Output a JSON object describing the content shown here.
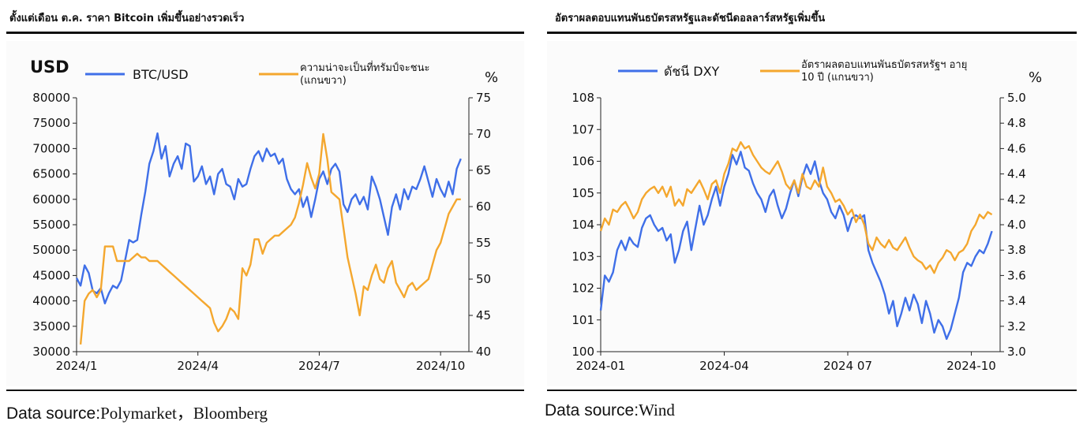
{
  "left": {
    "title": "ตั้งแต่เดือน ต.ค. ราคา Bitcoin เพิ่มขึ้นอย่างรวดเร็ว",
    "source_label": "Data source:",
    "source_value": "Polymarket，Bloomberg"
  },
  "right": {
    "title": "อัตราผลตอบแทนพันธบัตรสหรัฐและดัชนีดอลลาร์สหรัฐเพิ่มขึ้น",
    "source_label": "Data source:",
    "source_value": "Wind"
  },
  "colors": {
    "blue": "#3f6fe8",
    "orange": "#f4a72e",
    "axis": "#222222"
  },
  "chart_data": [
    {
      "type": "line",
      "title": "ตั้งแต่เดือน ต.ค. ราคา Bitcoin เพิ่มขึ้นอย่างรวดเร็ว",
      "left_unit": "USD",
      "right_unit": "%",
      "xlim": [
        0,
        9.7
      ],
      "x_ticks": [
        {
          "v": 0,
          "label": "2024/1"
        },
        {
          "v": 3,
          "label": "2024/4"
        },
        {
          "v": 6,
          "label": "2024/7"
        },
        {
          "v": 9,
          "label": "2024/10"
        }
      ],
      "ylim_left": [
        30000,
        80000
      ],
      "yticks_left": [
        30000,
        35000,
        40000,
        45000,
        50000,
        55000,
        60000,
        65000,
        70000,
        75000,
        80000
      ],
      "ylim_right": [
        40,
        75
      ],
      "yticks_right": [
        40,
        45,
        50,
        55,
        60,
        65,
        70,
        75
      ],
      "legend": [
        {
          "label": "BTC/USD",
          "color": "#3f6fe8"
        },
        {
          "label": "ความน่าจะเป็นที่ทรัมป์จะชนะ",
          "label2": "(แกนขวา)",
          "color": "#f4a72e"
        }
      ],
      "series": [
        {
          "name": "BTC/USD",
          "axis": "left",
          "color": "#3f6fe8",
          "x": [
            0,
            0.1,
            0.2,
            0.3,
            0.4,
            0.5,
            0.6,
            0.7,
            0.8,
            0.9,
            1.0,
            1.1,
            1.2,
            1.3,
            1.4,
            1.5,
            1.6,
            1.7,
            1.8,
            1.9,
            2.0,
            2.1,
            2.2,
            2.3,
            2.4,
            2.5,
            2.6,
            2.7,
            2.8,
            2.9,
            3.0,
            3.1,
            3.2,
            3.3,
            3.4,
            3.5,
            3.6,
            3.7,
            3.8,
            3.9,
            4.0,
            4.1,
            4.2,
            4.3,
            4.4,
            4.5,
            4.6,
            4.7,
            4.8,
            4.9,
            5.0,
            5.1,
            5.2,
            5.3,
            5.4,
            5.5,
            5.6,
            5.7,
            5.8,
            5.9,
            6.0,
            6.1,
            6.2,
            6.3,
            6.4,
            6.5,
            6.6,
            6.7,
            6.8,
            6.9,
            7.0,
            7.1,
            7.2,
            7.3,
            7.4,
            7.5,
            7.6,
            7.7,
            7.8,
            7.9,
            8.0,
            8.1,
            8.2,
            8.3,
            8.4,
            8.5,
            8.6,
            8.7,
            8.8,
            8.9,
            9.0,
            9.1,
            9.2,
            9.3,
            9.4,
            9.5
          ],
          "values": [
            44500,
            43000,
            47000,
            45500,
            42000,
            41500,
            42500,
            39500,
            41500,
            43000,
            42500,
            44000,
            48000,
            52000,
            51500,
            52000,
            57000,
            61500,
            67000,
            69500,
            73000,
            68000,
            70500,
            64500,
            67000,
            68500,
            66000,
            71000,
            70500,
            63500,
            64500,
            66500,
            63000,
            64500,
            61000,
            65000,
            66000,
            63000,
            62500,
            60000,
            64000,
            62500,
            63000,
            66000,
            68500,
            69500,
            67500,
            70000,
            68500,
            69000,
            67000,
            68000,
            64000,
            62000,
            61000,
            62000,
            58500,
            60500,
            56500,
            60000,
            64000,
            65500,
            63000,
            66000,
            67000,
            65500,
            59000,
            57500,
            60000,
            61000,
            59000,
            60500,
            58000,
            64500,
            62500,
            60000,
            56500,
            53000,
            58500,
            61000,
            58000,
            62000,
            60000,
            62500,
            62000,
            64000,
            66500,
            63500,
            60500,
            64000,
            62000,
            60500,
            63500,
            61000,
            66000,
            68000
          ]
        },
        {
          "name": "ความน่าจะเป็นที่ทรัมป์จะชนะ",
          "axis": "right",
          "color": "#f4a72e",
          "x": [
            0.1,
            0.2,
            0.3,
            0.4,
            0.5,
            0.6,
            0.7,
            0.8,
            0.9,
            1.0,
            1.1,
            1.2,
            1.3,
            1.4,
            1.5,
            1.6,
            1.7,
            1.8,
            1.9,
            2.0,
            2.1,
            2.2,
            2.3,
            2.4,
            2.5,
            2.6,
            2.7,
            2.8,
            2.9,
            3.0,
            3.1,
            3.2,
            3.3,
            3.4,
            3.5,
            3.6,
            3.7,
            3.8,
            3.9,
            4.0,
            4.1,
            4.2,
            4.3,
            4.4,
            4.5,
            4.6,
            4.7,
            4.8,
            4.9,
            5.0,
            5.1,
            5.2,
            5.3,
            5.4,
            5.5,
            5.6,
            5.7,
            5.8,
            5.9,
            6.0,
            6.1,
            6.2,
            6.3,
            6.4,
            6.5,
            6.6,
            6.7,
            6.8,
            6.9,
            7.0,
            7.1,
            7.2,
            7.3,
            7.4,
            7.5,
            7.6,
            7.7,
            7.8,
            7.9,
            8.0,
            8.1,
            8.2,
            8.3,
            8.4,
            8.5,
            8.6,
            8.7,
            8.8,
            8.9,
            9.0,
            9.1,
            9.2,
            9.3,
            9.4,
            9.5
          ],
          "values": [
            41,
            47,
            48,
            48.5,
            47.5,
            48.5,
            54.5,
            54.5,
            54.5,
            52.5,
            52.5,
            52.5,
            52.5,
            53,
            53.5,
            53,
            53,
            52.5,
            52.5,
            52.5,
            52,
            51.5,
            51,
            50.5,
            50,
            49.5,
            49,
            48.5,
            48,
            47.5,
            47,
            46.5,
            46,
            44,
            42.8,
            43.5,
            44.5,
            46,
            45.5,
            44.5,
            51.5,
            50.5,
            52,
            55.5,
            55.5,
            53.5,
            55,
            55.5,
            56,
            56,
            56.5,
            57,
            57.5,
            58.5,
            60.5,
            63,
            66,
            64,
            62.5,
            64.5,
            70,
            66.5,
            62,
            61.5,
            61,
            57,
            53,
            50.5,
            48,
            45,
            49,
            48.5,
            50.5,
            52,
            50,
            49.5,
            51.5,
            52.5,
            49.5,
            48.5,
            47.5,
            49,
            49.5,
            48.5,
            49,
            49.5,
            50,
            52,
            54,
            55,
            57,
            59,
            60,
            61,
            61
          ]
        }
      ]
    },
    {
      "type": "line",
      "title": "อัตราผลตอบแทนพันธบัตรสหรัฐและดัชนีดอลลาร์สหรัฐเพิ่มขึ้น",
      "left_unit": "",
      "right_unit": "%",
      "xlim": [
        0,
        9.7
      ],
      "x_ticks": [
        {
          "v": 0,
          "label": "2024-01"
        },
        {
          "v": 3,
          "label": "2024-04"
        },
        {
          "v": 6,
          "label": "2024 07"
        },
        {
          "v": 9,
          "label": "2024-10"
        }
      ],
      "ylim_left": [
        100,
        108
      ],
      "yticks_left": [
        100,
        101,
        102,
        103,
        104,
        105,
        106,
        107,
        108
      ],
      "ylim_right": [
        3.0,
        5.0
      ],
      "yticks_right": [
        "3.0",
        "3.2",
        "3.4",
        "3.6",
        "3.8",
        "4.0",
        "4.2",
        "4.4",
        "4.6",
        "4.8",
        "5.0"
      ],
      "legend": [
        {
          "label": "ดัชนี DXY",
          "color": "#3f6fe8"
        },
        {
          "label": "อัตราผลตอบแทนพันธบัตรสหรัฐฯ อายุ",
          "label2": "10 ปี (แกนขวา)",
          "color": "#f4a72e"
        }
      ],
      "series": [
        {
          "name": "ดัชนี DXY",
          "axis": "left",
          "color": "#3f6fe8",
          "x": [
            0,
            0.1,
            0.2,
            0.3,
            0.4,
            0.5,
            0.6,
            0.7,
            0.8,
            0.9,
            1.0,
            1.1,
            1.2,
            1.3,
            1.4,
            1.5,
            1.6,
            1.7,
            1.8,
            1.9,
            2.0,
            2.1,
            2.2,
            2.3,
            2.4,
            2.5,
            2.6,
            2.7,
            2.8,
            2.9,
            3.0,
            3.1,
            3.2,
            3.3,
            3.4,
            3.5,
            3.6,
            3.7,
            3.8,
            3.9,
            4.0,
            4.1,
            4.2,
            4.3,
            4.4,
            4.5,
            4.6,
            4.7,
            4.8,
            4.9,
            5.0,
            5.1,
            5.2,
            5.3,
            5.4,
            5.5,
            5.6,
            5.7,
            5.8,
            5.9,
            6.0,
            6.1,
            6.2,
            6.3,
            6.4,
            6.5,
            6.6,
            6.7,
            6.8,
            6.9,
            7.0,
            7.1,
            7.2,
            7.3,
            7.4,
            7.5,
            7.6,
            7.7,
            7.8,
            7.9,
            8.0,
            8.1,
            8.2,
            8.3,
            8.4,
            8.5,
            8.6,
            8.7,
            8.8,
            8.9,
            9.0,
            9.1,
            9.2,
            9.3,
            9.4,
            9.5
          ],
          "values": [
            101.3,
            102.4,
            102.2,
            102.5,
            103.2,
            103.5,
            103.2,
            103.6,
            103.4,
            103.3,
            103.9,
            104.2,
            104.3,
            104.0,
            103.8,
            103.9,
            103.5,
            103.7,
            102.8,
            103.2,
            103.8,
            104.1,
            103.2,
            103.9,
            104.6,
            104.0,
            104.3,
            104.8,
            105.2,
            104.6,
            105.2,
            105.6,
            106.2,
            105.9,
            106.3,
            105.8,
            105.7,
            105.3,
            105.0,
            104.8,
            104.4,
            104.9,
            105.1,
            104.6,
            104.2,
            104.5,
            105.0,
            105.4,
            104.9,
            105.5,
            105.9,
            105.6,
            106.0,
            105.4,
            105.0,
            104.8,
            104.4,
            104.2,
            104.6,
            104.3,
            103.8,
            104.2,
            104.3,
            104.2,
            104.3,
            103.2,
            102.8,
            102.5,
            102.2,
            101.8,
            101.2,
            101.6,
            100.8,
            101.2,
            101.7,
            101.3,
            101.8,
            101.5,
            100.9,
            101.6,
            101.2,
            100.6,
            101.0,
            100.8,
            100.4,
            100.7,
            101.2,
            101.7,
            102.5,
            102.8,
            102.7,
            103.0,
            103.2,
            103.1,
            103.4,
            103.8
          ]
        },
        {
          "name": "อัตราผลตอบแทนพันธบัตรสหรัฐฯ อายุ 10 ปี (แกนขวา)",
          "axis": "right",
          "color": "#f4a72e",
          "x": [
            0,
            0.1,
            0.2,
            0.3,
            0.4,
            0.5,
            0.6,
            0.7,
            0.8,
            0.9,
            1.0,
            1.1,
            1.2,
            1.3,
            1.4,
            1.5,
            1.6,
            1.7,
            1.8,
            1.9,
            2.0,
            2.1,
            2.2,
            2.3,
            2.4,
            2.5,
            2.6,
            2.7,
            2.8,
            2.9,
            3.0,
            3.1,
            3.2,
            3.3,
            3.4,
            3.5,
            3.6,
            3.7,
            3.8,
            3.9,
            4.0,
            4.1,
            4.2,
            4.3,
            4.4,
            4.5,
            4.6,
            4.7,
            4.8,
            4.9,
            5.0,
            5.1,
            5.2,
            5.3,
            5.4,
            5.5,
            5.6,
            5.7,
            5.8,
            5.9,
            6.0,
            6.1,
            6.2,
            6.3,
            6.4,
            6.5,
            6.6,
            6.7,
            6.8,
            6.9,
            7.0,
            7.1,
            7.2,
            7.3,
            7.4,
            7.5,
            7.6,
            7.7,
            7.8,
            7.9,
            8.0,
            8.1,
            8.2,
            8.3,
            8.4,
            8.5,
            8.6,
            8.7,
            8.8,
            8.9,
            9.0,
            9.1,
            9.2,
            9.3,
            9.4,
            9.5
          ],
          "values": [
            3.95,
            4.05,
            4.0,
            4.12,
            4.1,
            4.15,
            4.18,
            4.12,
            4.05,
            4.1,
            4.2,
            4.25,
            4.28,
            4.3,
            4.25,
            4.3,
            4.22,
            4.3,
            4.15,
            4.2,
            4.15,
            4.28,
            4.25,
            4.3,
            4.35,
            4.28,
            4.2,
            4.32,
            4.35,
            4.25,
            4.4,
            4.48,
            4.6,
            4.58,
            4.65,
            4.6,
            4.62,
            4.55,
            4.5,
            4.45,
            4.42,
            4.4,
            4.45,
            4.5,
            4.42,
            4.32,
            4.28,
            4.35,
            4.25,
            4.4,
            4.3,
            4.28,
            4.35,
            4.3,
            4.45,
            4.3,
            4.25,
            4.18,
            4.2,
            4.15,
            4.08,
            4.12,
            4.02,
            4.08,
            4.0,
            3.85,
            3.8,
            3.9,
            3.85,
            3.82,
            3.88,
            3.82,
            3.8,
            3.85,
            3.9,
            3.82,
            3.75,
            3.72,
            3.7,
            3.65,
            3.68,
            3.62,
            3.7,
            3.74,
            3.8,
            3.78,
            3.72,
            3.78,
            3.8,
            3.85,
            3.95,
            4.0,
            4.08,
            4.05,
            4.1,
            4.08
          ]
        }
      ]
    }
  ]
}
